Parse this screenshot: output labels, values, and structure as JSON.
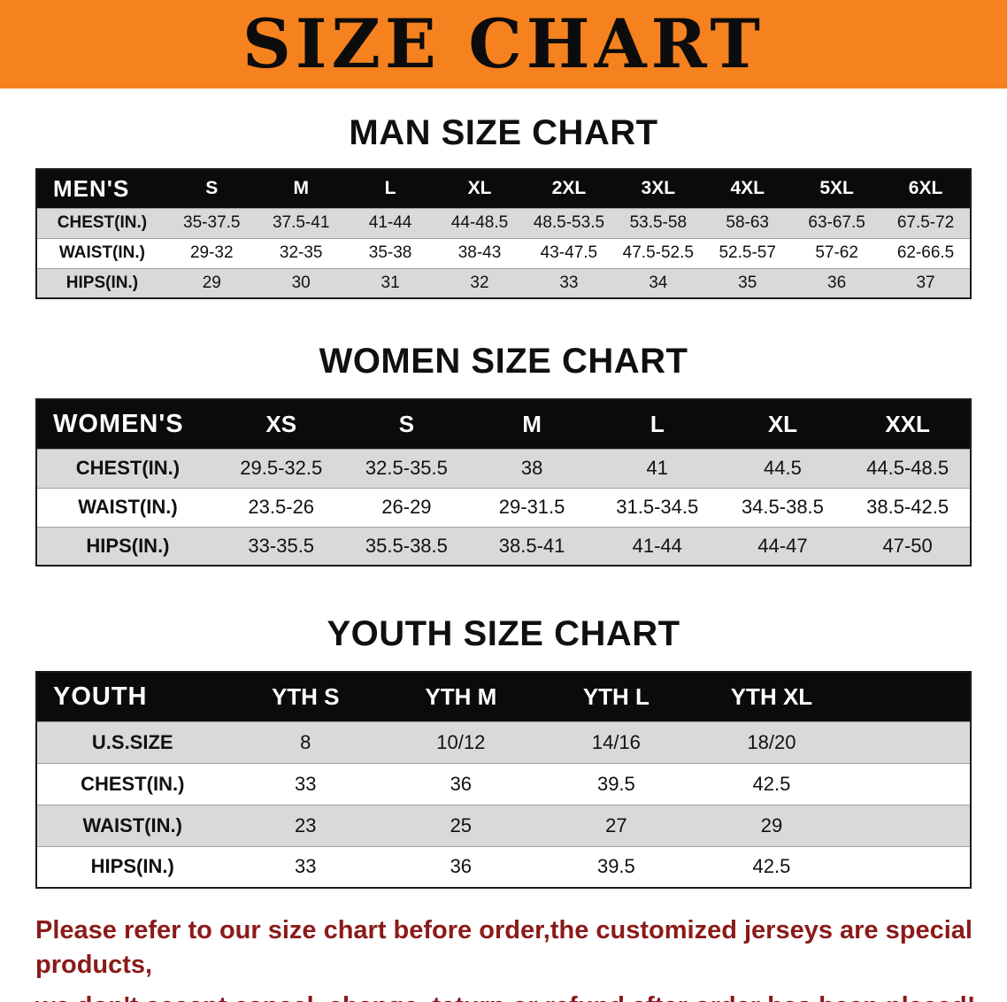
{
  "banner": {
    "title": "SIZE CHART"
  },
  "sections": [
    {
      "heading": "MAN SIZE CHART",
      "table": {
        "corner": "MEN'S",
        "columns": [
          "S",
          "M",
          "L",
          "XL",
          "2XL",
          "3XL",
          "4XL",
          "5XL",
          "6XL"
        ],
        "rows": [
          {
            "label": "CHEST(IN.)",
            "values": [
              "35-37.5",
              "37.5-41",
              "41-44",
              "44-48.5",
              "48.5-53.5",
              "53.5-58",
              "58-63",
              "63-67.5",
              "67.5-72"
            ]
          },
          {
            "label": "WAIST(IN.)",
            "values": [
              "29-32",
              "32-35",
              "35-38",
              "38-43",
              "43-47.5",
              "47.5-52.5",
              "52.5-57",
              "57-62",
              "62-66.5"
            ]
          },
          {
            "label": "HIPS(IN.)",
            "values": [
              "29",
              "30",
              "31",
              "32",
              "33",
              "34",
              "35",
              "36",
              "37"
            ]
          }
        ]
      }
    },
    {
      "heading": "WOMEN SIZE CHART",
      "table": {
        "corner": "WOMEN'S",
        "columns": [
          "XS",
          "S",
          "M",
          "L",
          "XL",
          "XXL"
        ],
        "rows": [
          {
            "label": "CHEST(IN.)",
            "values": [
              "29.5-32.5",
              "32.5-35.5",
              "38",
              "41",
              "44.5",
              "44.5-48.5"
            ]
          },
          {
            "label": "WAIST(IN.)",
            "values": [
              "23.5-26",
              "26-29",
              "29-31.5",
              "31.5-34.5",
              "34.5-38.5",
              "38.5-42.5"
            ]
          },
          {
            "label": "HIPS(IN.)",
            "values": [
              "33-35.5",
              "35.5-38.5",
              "38.5-41",
              "41-44",
              "44-47",
              "47-50"
            ]
          }
        ]
      }
    },
    {
      "heading": "YOUTH SIZE CHART",
      "table": {
        "corner": "YOUTH",
        "columns": [
          "YTH S",
          "YTH M",
          "YTH L",
          "YTH XL"
        ],
        "rows": [
          {
            "label": "U.S.SIZE",
            "values": [
              "8",
              "10/12",
              "14/16",
              "18/20"
            ]
          },
          {
            "label": "CHEST(IN.)",
            "values": [
              "33",
              "36",
              "39.5",
              "42.5"
            ]
          },
          {
            "label": "WAIST(IN.)",
            "values": [
              "23",
              "25",
              "27",
              "29"
            ]
          },
          {
            "label": "HIPS(IN.)",
            "values": [
              "33",
              "36",
              "39.5",
              "42.5"
            ]
          }
        ]
      }
    }
  ],
  "footer": {
    "lines": [
      "Please refer to our size chart before order,the customized jerseys are special products,",
      "we don't accept cancel, change, teturn or refund after order has been placed!"
    ]
  },
  "colors": {
    "banner_orange": "#F5821F",
    "header_black": "#0b0b0b",
    "row_gray": "#d9d9d9",
    "footer_red": "#8B1A1A"
  }
}
